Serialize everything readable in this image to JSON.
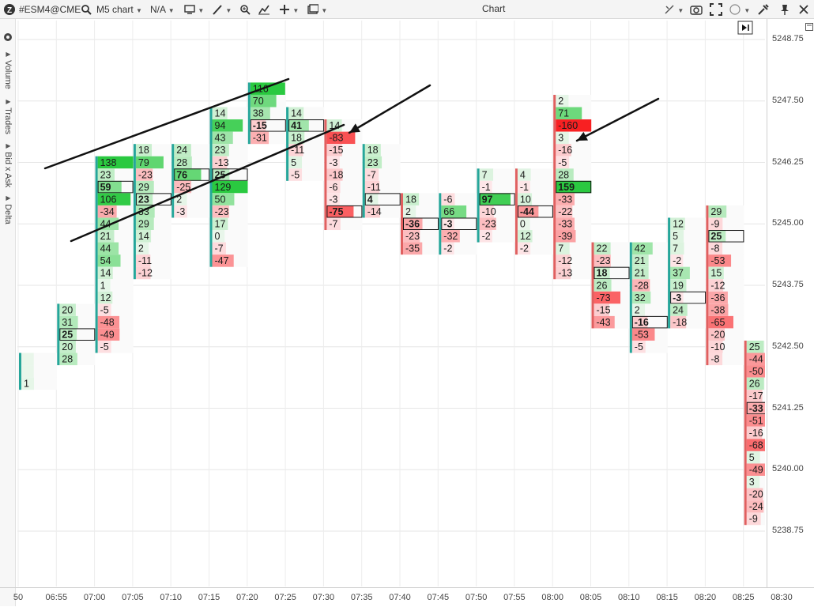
{
  "toolbar": {
    "symbol": "#ESM4@CME",
    "timeframe": "M5 chart",
    "mode": "N/A",
    "window_title": "Chart"
  },
  "sidebar": {
    "tabs": [
      "Volume",
      "Trades",
      "Bid x Ask",
      "Delta"
    ]
  },
  "price_axis": [
    "5248.75",
    "5247.50",
    "5246.25",
    "5245.00",
    "5243.75",
    "5242.50",
    "5241.25",
    "5240.00",
    "5238.75"
  ],
  "time_axis": [
    "50",
    "06:55",
    "07:00",
    "07:05",
    "07:10",
    "07:15",
    "07:20",
    "07:25",
    "07:30",
    "07:35",
    "07:40",
    "07:45",
    "07:50",
    "07:55",
    "08:00",
    "08:05",
    "08:10",
    "08:15",
    "08:20",
    "08:25",
    "08:30"
  ],
  "colors": {
    "bull_bar": "#26a69a",
    "bear_bar": "#e06060",
    "positive_strong": "#2ecc40",
    "negative_strong": "#ff1a1a"
  },
  "chart_data": {
    "type": "table",
    "tick_size": 0.25,
    "columns": [
      {
        "time": "06:50",
        "top": 5242.25,
        "values": [
          "",
          "",
          1
        ],
        "poc": null
      },
      {
        "time": "06:55",
        "top": 5243.25,
        "values": [
          20,
          31,
          25,
          20,
          28
        ],
        "poc": 25
      },
      {
        "time": "07:00",
        "top": 5246.25,
        "values": [
          138,
          23,
          59,
          106,
          -34,
          44,
          21,
          44,
          54,
          14,
          1,
          12,
          -5,
          -48,
          -49,
          -5
        ],
        "poc": 59
      },
      {
        "time": "07:05",
        "top": 5246.5,
        "values": [
          18,
          79,
          -23,
          29,
          23,
          33,
          29,
          14,
          2,
          -11,
          -12
        ],
        "poc": 23
      },
      {
        "time": "07:10",
        "top": 5246.5,
        "values": [
          24,
          28,
          76,
          -25,
          2,
          -3
        ],
        "poc": 76
      },
      {
        "time": "07:15",
        "top": 5247.25,
        "values": [
          14,
          94,
          43,
          23,
          -13,
          25,
          129,
          50,
          -23,
          17,
          0,
          -7,
          -47
        ],
        "poc": 25
      },
      {
        "time": "07:20",
        "top": 5247.75,
        "values": [
          116,
          70,
          38,
          -15,
          -31
        ],
        "poc": -15
      },
      {
        "time": "07:25",
        "top": 5247.25,
        "values": [
          14,
          41,
          18,
          -11,
          5,
          -5
        ],
        "poc": 41
      },
      {
        "time": "07:30",
        "top": 5247.0,
        "values": [
          14,
          -83,
          -15,
          -3,
          -18,
          -6,
          -3,
          -75,
          -7
        ],
        "poc": -75
      },
      {
        "time": "07:35",
        "top": 5246.5,
        "values": [
          18,
          23,
          -7,
          -11,
          4,
          -14
        ],
        "poc": 4
      },
      {
        "time": "07:40",
        "top": 5245.5,
        "values": [
          18,
          2,
          -36,
          -23,
          -35
        ],
        "poc": -36
      },
      {
        "time": "07:45",
        "top": 5245.5,
        "values": [
          -6,
          66,
          -3,
          -32,
          -2
        ],
        "poc": -3
      },
      {
        "time": "07:50",
        "top": 5246.0,
        "values": [
          7,
          -1,
          97,
          -10,
          -23,
          -2
        ],
        "poc": 97
      },
      {
        "time": "07:55",
        "top": 5246.0,
        "values": [
          4,
          -1,
          10,
          -44,
          0,
          12,
          -2
        ],
        "poc": -44
      },
      {
        "time": "08:00",
        "top": 5247.5,
        "values": [
          2,
          71,
          -160,
          3,
          -16,
          -5,
          28,
          159,
          -33,
          -22,
          -33,
          -39,
          7,
          -12,
          -13
        ],
        "poc": 159
      },
      {
        "time": "08:05",
        "top": 5244.5,
        "values": [
          22,
          -23,
          18,
          26,
          -73,
          -15,
          -43
        ],
        "poc": 18
      },
      {
        "time": "08:10",
        "top": 5244.5,
        "values": [
          42,
          21,
          21,
          -28,
          32,
          2,
          -16,
          -53,
          -5
        ],
        "poc": -16
      },
      {
        "time": "08:15",
        "top": 5245.0,
        "values": [
          12,
          5,
          7,
          -2,
          37,
          19,
          -3,
          24,
          -18
        ],
        "poc": -3
      },
      {
        "time": "08:20",
        "top": 5245.25,
        "values": [
          29,
          -9,
          25,
          -8,
          -53,
          15,
          -12,
          -36,
          -38,
          -65,
          -20,
          -10,
          -8
        ],
        "poc": 25
      },
      {
        "time": "08:25",
        "top": 5242.5,
        "values": [
          25,
          -44,
          -50,
          26,
          -17,
          -33,
          -51,
          -16,
          -68,
          5,
          -49,
          3,
          -20,
          -24,
          -9
        ],
        "poc": -33
      }
    ]
  }
}
